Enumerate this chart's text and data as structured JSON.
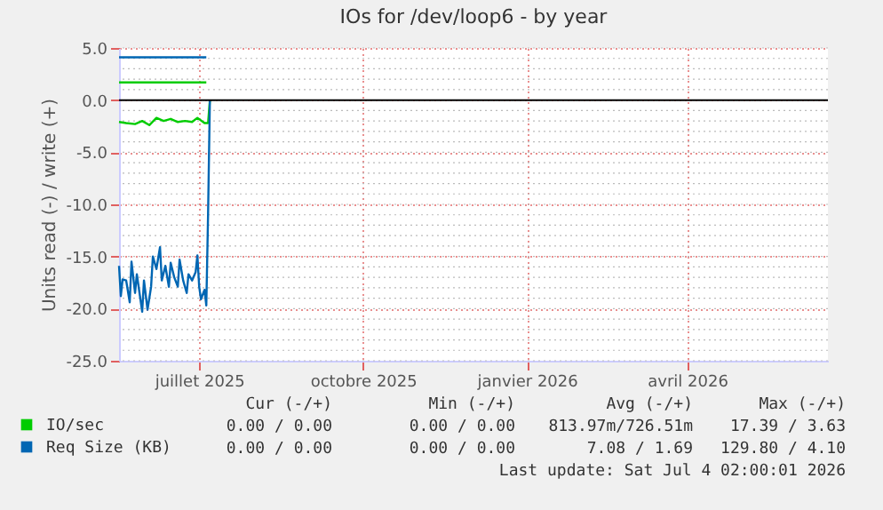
{
  "chart_data": {
    "type": "line",
    "title": "IOs for /dev/loop6 - by year",
    "ylabel": "Units read (-) / write (+)",
    "xlim": [
      "2025-06-01",
      "2026-07-04"
    ],
    "xticks": [
      {
        "value": "2025-07-16",
        "label": "juillet 2025"
      },
      {
        "value": "2025-10-16",
        "label": "octobre 2025"
      },
      {
        "value": "2026-01-16",
        "label": "janvier 2026"
      },
      {
        "value": "2026-04-16",
        "label": "avril 2026"
      }
    ],
    "ylim": [
      -25,
      5
    ],
    "yticks": [
      {
        "value": -25,
        "label": "-25.0"
      },
      {
        "value": -20,
        "label": "-20.0"
      },
      {
        "value": -15,
        "label": "-15.0"
      },
      {
        "value": -10,
        "label": "-10.0"
      },
      {
        "value": -5,
        "label": "-5.0"
      },
      {
        "value": 0,
        "label": "0.0"
      },
      {
        "value": 5,
        "label": "5.0"
      }
    ],
    "grid": true,
    "legend": "bottom",
    "line_style": "solid",
    "marker": "none",
    "ref_lines": [
      {
        "axis": "y",
        "value": 0,
        "color": "#000000"
      }
    ],
    "series": [
      {
        "name": "IO/sec",
        "color": "#00cc00",
        "x": [
          "2025-06-01",
          "2025-07-20"
        ],
        "values": [
          1.7,
          1.7
        ]
      },
      {
        "color": "#00cc00",
        "x": [
          "2025-06-01",
          "2025-06-05",
          "2025-06-10",
          "2025-06-14",
          "2025-06-18",
          "2025-06-22",
          "2025-06-26",
          "2025-06-30",
          "2025-07-04",
          "2025-07-08",
          "2025-07-12",
          "2025-07-15",
          "2025-07-19",
          "2025-07-21",
          "2025-07-22"
        ],
        "values": [
          -2.1,
          -2.2,
          -2.3,
          -2.0,
          -2.4,
          -1.7,
          -2.0,
          -1.8,
          -2.1,
          -2.0,
          -2.1,
          -1.7,
          -2.2,
          -2.2,
          0
        ]
      },
      {
        "name": "Req Size (KB)",
        "color": "#0066b3",
        "x": [
          "2025-06-01",
          "2025-07-20"
        ],
        "values": [
          4.1,
          4.1
        ]
      },
      {
        "color": "#0066b3",
        "x": [
          "2025-06-01",
          "2025-06-02",
          "2025-06-03",
          "2025-06-05",
          "2025-06-07",
          "2025-06-08",
          "2025-06-10",
          "2025-06-11",
          "2025-06-13",
          "2025-06-14",
          "2025-06-15",
          "2025-06-17",
          "2025-06-19",
          "2025-06-20",
          "2025-06-22",
          "2025-06-24",
          "2025-06-25",
          "2025-06-27",
          "2025-06-29",
          "2025-06-30",
          "2025-07-02",
          "2025-07-04",
          "2025-07-05",
          "2025-07-07",
          "2025-07-09",
          "2025-07-10",
          "2025-07-12",
          "2025-07-14",
          "2025-07-15",
          "2025-07-16",
          "2025-07-17",
          "2025-07-19",
          "2025-07-20",
          "2025-07-21",
          "2025-07-22"
        ],
        "values": [
          -15.9,
          -18.8,
          -17.2,
          -17.3,
          -19.4,
          -15.5,
          -18.5,
          -16.7,
          -19.1,
          -20.3,
          -17.3,
          -20.1,
          -17.9,
          -15.0,
          -16.2,
          -14.1,
          -17.3,
          -15.9,
          -17.9,
          -15.6,
          -17.0,
          -17.9,
          -15.3,
          -17.3,
          -18.5,
          -16.7,
          -17.3,
          -16.5,
          -14.9,
          -17.9,
          -19.1,
          -18.2,
          -19.7,
          -10.9,
          0
        ]
      }
    ],
    "annotations": [
      "Cur (-/+)",
      "Min (-/+)",
      "Avg (-/+)",
      "Max (-/+)",
      "0.00 / 0.00",
      "0.00 / 0.00",
      "813.97m/726.51m",
      "17.39 / 3.63",
      "0.00 / 0.00",
      "0.00 / 0.00",
      "7.08 / 1.69",
      "129.80 / 4.10",
      "Last update: Sat Jul  4 02:00:01 2026"
    ]
  }
}
